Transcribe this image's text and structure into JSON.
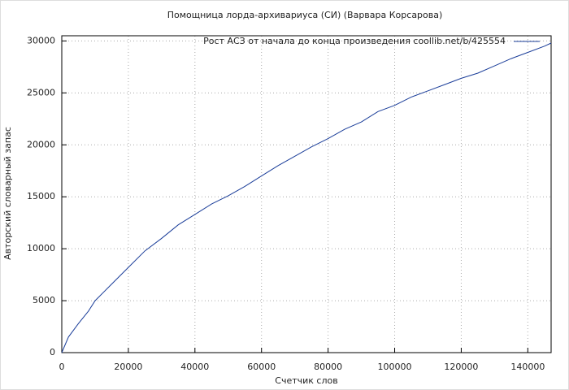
{
  "chart_data": {
    "type": "line",
    "title": "Помощница лорда-архивариуса (СИ) (Варвара Корсарова)",
    "x_label": "Счетчик слов",
    "y_label": "Авторский словарный запас",
    "x": [
      0,
      2000,
      5000,
      8000,
      10000,
      15000,
      20000,
      25000,
      30000,
      35000,
      40000,
      45000,
      50000,
      55000,
      60000,
      65000,
      70000,
      75000,
      80000,
      85000,
      90000,
      95000,
      100000,
      105000,
      110000,
      115000,
      120000,
      125000,
      130000,
      135000,
      140000,
      145000,
      147000
    ],
    "series": [
      {
        "name": "Рост АСЗ от начала до конца произведения coollib.net/b/425554",
        "color": "#1a3d99",
        "values": [
          0,
          1500,
          2800,
          4000,
          5000,
          6600,
          8200,
          9800,
          11000,
          12300,
          13300,
          14300,
          15100,
          16000,
          17000,
          18000,
          18900,
          19800,
          20600,
          21500,
          22200,
          23200,
          23800,
          24600,
          25200,
          25800,
          26400,
          26900,
          27600,
          28300,
          28900,
          29500,
          29800
        ]
      }
    ],
    "xlim": [
      0,
      147000
    ],
    "ylim": [
      0,
      30500
    ],
    "xticks": [
      0,
      20000,
      40000,
      60000,
      80000,
      100000,
      120000,
      140000
    ],
    "yticks": [
      0,
      5000,
      10000,
      15000,
      20000,
      25000,
      30000
    ],
    "grid": true,
    "legend": "top-right"
  }
}
